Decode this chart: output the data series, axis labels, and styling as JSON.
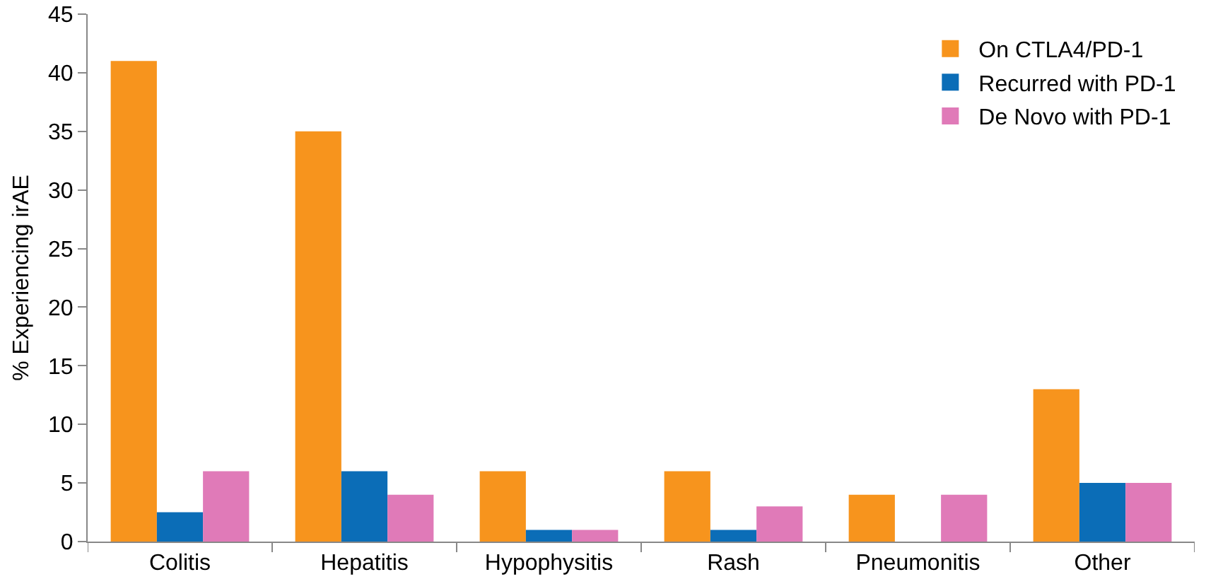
{
  "chart_data": {
    "type": "bar",
    "ylabel": "% Experiencing irAE",
    "categories": [
      "Colitis",
      "Hepatitis",
      "Hypophysitis",
      "Rash",
      "Pneumonitis",
      "Other"
    ],
    "series": [
      {
        "name": "On CTLA4/PD-1",
        "color": "#f7941d",
        "values": [
          41,
          35,
          6,
          6,
          4,
          13
        ]
      },
      {
        "name": "Recurred with PD-1",
        "color": "#0b6db7",
        "values": [
          2.5,
          6,
          1,
          1,
          0,
          5
        ]
      },
      {
        "name": "De Novo with PD-1",
        "color": "#e07ab8",
        "values": [
          6,
          4,
          1,
          3,
          4,
          5
        ]
      }
    ],
    "ylim": [
      0,
      45
    ],
    "yticks": [
      0,
      5,
      10,
      15,
      20,
      25,
      30,
      35,
      40,
      45
    ],
    "grid": false,
    "legend": "top right"
  }
}
